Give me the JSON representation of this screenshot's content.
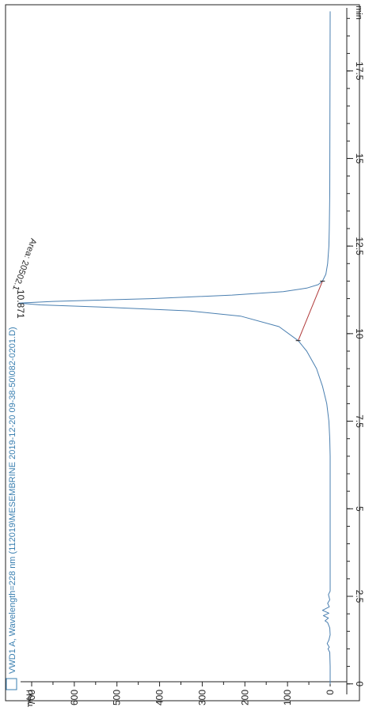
{
  "title": "VWD1 A, Wavelength=228 nm (112019\\MESEMBRINE 2019-12-20 09-38-50\\082-0201.D)",
  "colors": {
    "frame": "#222222",
    "trace": "#4a7fb0",
    "baseline": "#b03a3a",
    "title": "#3a7fb0",
    "text": "#222222"
  },
  "chart_data": {
    "type": "line",
    "orientation": "rotated-90-clockwise",
    "title": "VWD1 A, Wavelength=228 nm (112019\\MESEMBRINE 2019-12-20 09-38-50\\082-0201.D)",
    "xlabel": "min",
    "ylabel": "mAU",
    "xlim": [
      -0.3,
      19.3
    ],
    "ylim": [
      -50,
      780
    ],
    "x_ticks": [
      0,
      2.5,
      5,
      7.5,
      10,
      12.5,
      15,
      17.5
    ],
    "x_tick_labels": [
      "0",
      "2.5",
      "5",
      "7.5",
      "10",
      "12.5",
      "15",
      "17.5"
    ],
    "x_minor_step": 0.5,
    "y_ticks": [
      0,
      100,
      200,
      300,
      400,
      500,
      600,
      700
    ],
    "y_tick_labels": [
      "0",
      "100",
      "200",
      "300",
      "400",
      "500",
      "600",
      "700"
    ],
    "grid": false,
    "series": [
      {
        "points": [
          [
            0,
            0
          ],
          [
            0.5,
            0
          ],
          [
            0.9,
            1
          ],
          [
            1.0,
            5
          ],
          [
            1.05,
            2
          ],
          [
            1.15,
            7
          ],
          [
            1.25,
            3
          ],
          [
            1.4,
            0
          ],
          [
            1.6,
            1
          ],
          [
            1.75,
            6
          ],
          [
            1.8,
            12
          ],
          [
            1.88,
            4
          ],
          [
            1.95,
            16
          ],
          [
            2.02,
            3
          ],
          [
            2.1,
            18
          ],
          [
            2.2,
            2
          ],
          [
            2.3,
            6
          ],
          [
            2.4,
            1
          ],
          [
            2.55,
            4
          ],
          [
            2.65,
            0
          ],
          [
            3.0,
            0
          ],
          [
            5.0,
            0
          ],
          [
            6.5,
            0
          ],
          [
            7.0,
            1
          ],
          [
            7.5,
            3
          ],
          [
            8.0,
            8
          ],
          [
            8.5,
            18
          ],
          [
            9.0,
            32
          ],
          [
            9.5,
            55
          ],
          [
            9.8,
            75
          ],
          [
            10.2,
            120
          ],
          [
            10.5,
            210
          ],
          [
            10.65,
            330
          ],
          [
            10.75,
            520
          ],
          [
            10.82,
            680
          ],
          [
            10.871,
            730
          ],
          [
            10.92,
            650
          ],
          [
            11.0,
            420
          ],
          [
            11.1,
            230
          ],
          [
            11.2,
            110
          ],
          [
            11.3,
            55
          ],
          [
            11.4,
            28
          ],
          [
            11.5,
            18
          ],
          [
            11.7,
            10
          ],
          [
            12.0,
            6
          ],
          [
            12.5,
            3
          ],
          [
            13.0,
            2
          ],
          [
            14.0,
            1
          ],
          [
            19.2,
            0
          ]
        ]
      }
    ],
    "integration_baseline": [
      [
        9.8,
        75
      ],
      [
        11.5,
        18
      ]
    ],
    "annotations": [
      {
        "text": "10.871",
        "x": 10.871,
        "y": 730
      },
      {
        "text": "Area: 20502.1",
        "x": 10.871,
        "y": 730
      }
    ]
  }
}
